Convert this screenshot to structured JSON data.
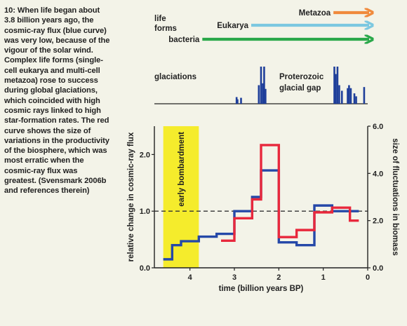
{
  "caption": "10: When life began about 3.8 billion years ago, the cosmic-ray flux (blue curve) was very low, because of the vigour of the solar wind. Complex life forms (single-cell eukarya and multi-cell metazoa) rose to success during global glaciations, which coincided with high cosmic rays linked to high star-formation rates. The red curve shows the size of variations in the productivity of the biosphere, which was most erratic when the cosmic-ray flux was greatest. (Svensmark 2006b and references therein)",
  "life_forms": {
    "label_line1": "life",
    "label_line2": "forms",
    "arrows": [
      {
        "name": "Metazoa",
        "start_gy": 0.85,
        "color": "#f08a3c"
      },
      {
        "name": "Eukarya",
        "start_gy": 2.7,
        "color": "#7cc8e0"
      },
      {
        "name": "bacteria",
        "start_gy": 3.8,
        "color": "#2aa84a"
      }
    ]
  },
  "glaciations": {
    "label": "glaciations",
    "gap_label_line1": "Proterozoic",
    "gap_label_line2": "glacial gap",
    "color": "#1f3f9a",
    "bars": [
      {
        "t": 2.95,
        "h": 0.18
      },
      {
        "t": 2.93,
        "h": 0.12
      },
      {
        "t": 2.85,
        "h": 0.16
      },
      {
        "t": 2.45,
        "h": 0.5
      },
      {
        "t": 2.4,
        "h": 1.0
      },
      {
        "t": 2.36,
        "h": 0.55
      },
      {
        "t": 2.33,
        "h": 1.0
      },
      {
        "t": 2.3,
        "h": 0.4
      },
      {
        "t": 0.75,
        "h": 1.0
      },
      {
        "t": 0.72,
        "h": 0.8
      },
      {
        "t": 0.68,
        "h": 1.0
      },
      {
        "t": 0.64,
        "h": 0.5
      },
      {
        "t": 0.58,
        "h": 0.35
      },
      {
        "t": 0.45,
        "h": 0.42
      },
      {
        "t": 0.42,
        "h": 0.5
      },
      {
        "t": 0.38,
        "h": 0.42
      },
      {
        "t": 0.3,
        "h": 0.28
      },
      {
        "t": 0.26,
        "h": 0.2
      },
      {
        "t": 0.08,
        "h": 0.45
      }
    ]
  },
  "chart_data": {
    "type": "line",
    "xlabel": "time (billion years BP)",
    "ylabel_left": "relative change in cosmic-ray flux",
    "ylabel_right": "size of fluctuations in biomass",
    "xlim": [
      4.8,
      0
    ],
    "ylim_left": [
      0,
      2.5
    ],
    "ylim_right": [
      0,
      6.0
    ],
    "x_ticks": [
      4,
      3,
      2,
      1,
      0
    ],
    "y_ticks_left": [
      "0.0",
      "1.0",
      "2.0"
    ],
    "y_ticks_right": [
      "0.0",
      "2.0",
      "4.0",
      "6.0"
    ],
    "reference_line_left": 1.0,
    "early_bombardment": {
      "label": "early bombardment",
      "from": 4.6,
      "to": 3.8,
      "color": "#f5ec2c"
    },
    "series": [
      {
        "color": "#2548a8",
        "axis": "left",
        "steps": [
          {
            "x0": 4.6,
            "x1": 4.4,
            "y": 0.15
          },
          {
            "x0": 4.4,
            "x1": 4.2,
            "y": 0.4
          },
          {
            "x0": 4.2,
            "x1": 3.8,
            "y": 0.47
          },
          {
            "x0": 3.8,
            "x1": 3.4,
            "y": 0.55
          },
          {
            "x0": 3.4,
            "x1": 3.0,
            "y": 0.6
          },
          {
            "x0": 3.0,
            "x1": 2.6,
            "y": 1.0
          },
          {
            "x0": 2.6,
            "x1": 2.4,
            "y": 1.25
          },
          {
            "x0": 2.4,
            "x1": 2.0,
            "y": 1.72
          },
          {
            "x0": 2.0,
            "x1": 1.6,
            "y": 0.45
          },
          {
            "x0": 1.6,
            "x1": 1.2,
            "y": 0.4
          },
          {
            "x0": 1.2,
            "x1": 0.8,
            "y": 1.1
          },
          {
            "x0": 0.8,
            "x1": 0.4,
            "y": 1.0
          },
          {
            "x0": 0.4,
            "x1": 0.2,
            "y": 1.0
          }
        ]
      },
      {
        "color": "#e8283c",
        "axis": "right",
        "steps": [
          {
            "x0": 3.3,
            "x1": 3.0,
            "y": 1.15
          },
          {
            "x0": 3.0,
            "x1": 2.6,
            "y": 2.1
          },
          {
            "x0": 2.6,
            "x1": 2.4,
            "y": 2.9
          },
          {
            "x0": 2.4,
            "x1": 2.0,
            "y": 5.2
          },
          {
            "x0": 2.0,
            "x1": 1.6,
            "y": 1.3
          },
          {
            "x0": 1.6,
            "x1": 1.2,
            "y": 1.6
          },
          {
            "x0": 1.2,
            "x1": 0.8,
            "y": 2.35
          },
          {
            "x0": 0.8,
            "x1": 0.4,
            "y": 2.55
          },
          {
            "x0": 0.4,
            "x1": 0.2,
            "y": 2.0
          }
        ]
      }
    ]
  }
}
